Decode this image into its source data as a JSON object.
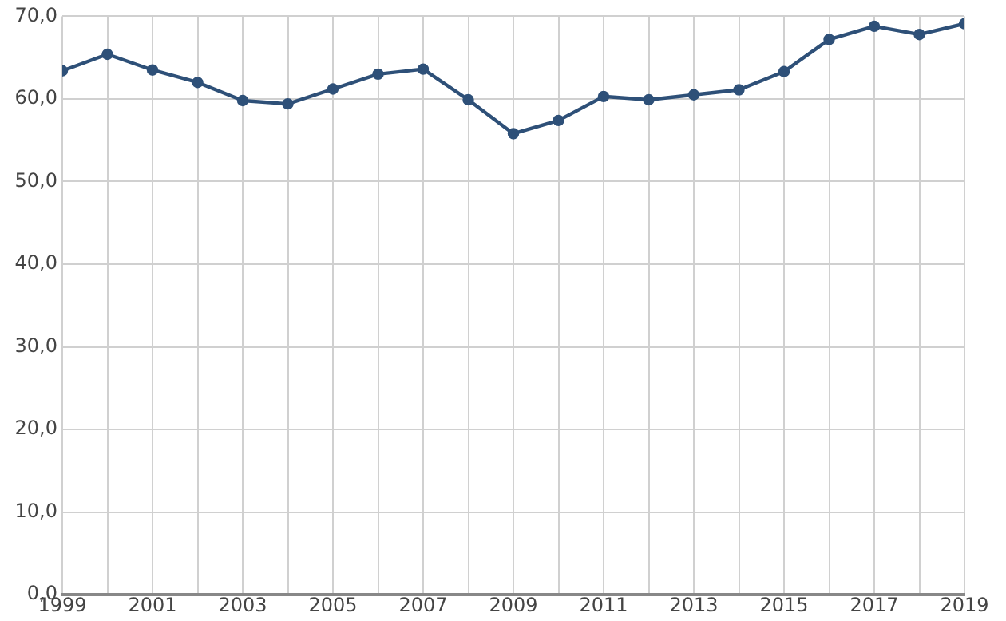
{
  "chart_data": {
    "type": "line",
    "x": [
      1999,
      2000,
      2001,
      2002,
      2003,
      2004,
      2005,
      2006,
      2007,
      2008,
      2009,
      2010,
      2011,
      2012,
      2013,
      2014,
      2015,
      2016,
      2017,
      2018,
      2019
    ],
    "series": [
      {
        "color": "#2e5078",
        "values": [
          63.4,
          65.4,
          63.5,
          62.0,
          59.8,
          59.4,
          61.2,
          63.0,
          63.6,
          59.9,
          55.8,
          57.4,
          60.3,
          59.9,
          60.5,
          61.1,
          63.3,
          67.2,
          68.8,
          67.8,
          69.1
        ]
      }
    ],
    "xlim": [
      1999,
      2019
    ],
    "xticks": [
      {
        "value": 1999,
        "label": "1999"
      },
      {
        "value": 2000,
        "label": null
      },
      {
        "value": 2001,
        "label": "2001"
      },
      {
        "value": 2002,
        "label": null
      },
      {
        "value": 2003,
        "label": "2003"
      },
      {
        "value": 2004,
        "label": null
      },
      {
        "value": 2005,
        "label": "2005"
      },
      {
        "value": 2006,
        "label": null
      },
      {
        "value": 2007,
        "label": "2007"
      },
      {
        "value": 2008,
        "label": null
      },
      {
        "value": 2009,
        "label": "2009"
      },
      {
        "value": 2010,
        "label": null
      },
      {
        "value": 2011,
        "label": "2011"
      },
      {
        "value": 2012,
        "label": null
      },
      {
        "value": 2013,
        "label": "2013"
      },
      {
        "value": 2014,
        "label": null
      },
      {
        "value": 2015,
        "label": "2015"
      },
      {
        "value": 2016,
        "label": null
      },
      {
        "value": 2017,
        "label": "2017"
      },
      {
        "value": 2018,
        "label": null
      },
      {
        "value": 2019,
        "label": "2019"
      }
    ],
    "ylim": [
      0,
      70
    ],
    "yticks": [
      {
        "value": 0,
        "label": "0,0"
      },
      {
        "value": 10,
        "label": "10,0"
      },
      {
        "value": 20,
        "label": "20,0"
      },
      {
        "value": 30,
        "label": "30,0"
      },
      {
        "value": 40,
        "label": "40,0"
      },
      {
        "value": 50,
        "label": "50,0"
      },
      {
        "value": 60,
        "label": "60,0"
      },
      {
        "value": 70,
        "label": "70,0"
      }
    ],
    "grid": true,
    "legend": false,
    "marker": "circle",
    "line_style": "solid"
  }
}
